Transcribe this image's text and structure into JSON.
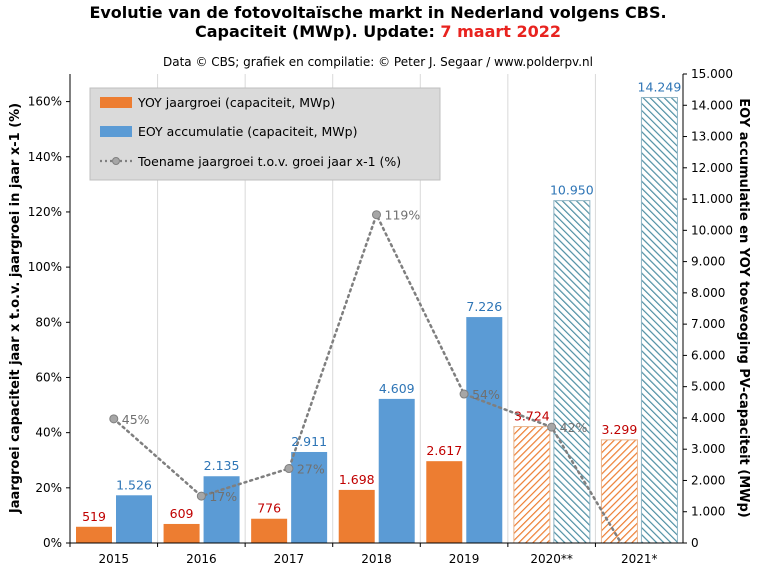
{
  "title_line1": "Evolutie  van de fotovoltaïsche  markt in Nederland volgens CBS.",
  "title_line2_black": "Capaciteit  (MWp). Update: ",
  "title_line2_red": "7 maart 2022",
  "source": "Data © CBS; grafiek en compilatie: © Peter J. Segaar / www.polderpv.nl",
  "colors": {
    "yoy": "#ed7d31",
    "eoy": "#5b9bd5",
    "growth_line": "#7f7f7f",
    "yoy_label": "#c00000",
    "eoy_label": "#2e75b6",
    "pct_label": "#707070",
    "title_red": "#e8231f"
  },
  "chart_data": {
    "type": "bar",
    "categories": [
      "2015",
      "2016",
      "2017",
      "2018",
      "2019",
      "2020**",
      "2021*"
    ],
    "hatched_categories": [
      "2020**",
      "2021*"
    ],
    "series": [
      {
        "name": "YOY jaargroei (capaciteit, MWp)",
        "axis": "right",
        "values": [
          519,
          609,
          776,
          1698,
          2617,
          3724,
          3299
        ],
        "value_labels": [
          "519",
          "609",
          "776",
          "1.698",
          "2.617",
          "3.724",
          "3.299"
        ]
      },
      {
        "name": "EOY accumulatie (capaciteit, MWp)",
        "axis": "right",
        "values": [
          1526,
          2135,
          2911,
          4609,
          7226,
          10950,
          14249
        ],
        "value_labels": [
          "1.526",
          "2.135",
          "2.911",
          "4.609",
          "7.226",
          "10.950",
          "14.249"
        ]
      },
      {
        "name": "Toename jaargroei t.o.v. groei jaar x-1 (%)",
        "type": "line",
        "axis": "left",
        "values": [
          45,
          17,
          27,
          119,
          54,
          42,
          -11
        ],
        "value_labels": [
          "45%",
          "17%",
          "27%",
          "119%",
          "54%",
          "42%",
          ""
        ]
      }
    ],
    "left_axis": {
      "label": "Jaargroei  capaciteit jaar x t.o.v. jaargroei in jaar x-1 (%)",
      "ylim": [
        0,
        170
      ],
      "ticks": [
        "0%",
        "20%",
        "40%",
        "60%",
        "80%",
        "100%",
        "120%",
        "140%",
        "160%"
      ]
    },
    "right_axis": {
      "label": "EOY accumulatie en YOY toeveoging PV-capaciteit (MWp)",
      "ylim": [
        0,
        15000
      ],
      "ticks": [
        "0",
        "1.000",
        "2.000",
        "3.000",
        "4.000",
        "5.000",
        "6.000",
        "7.000",
        "8.000",
        "9.000",
        "10.000",
        "11.000",
        "12.000",
        "13.000",
        "14.000",
        "15.000"
      ]
    },
    "grid": "vertical",
    "legend_position": "top-left"
  }
}
